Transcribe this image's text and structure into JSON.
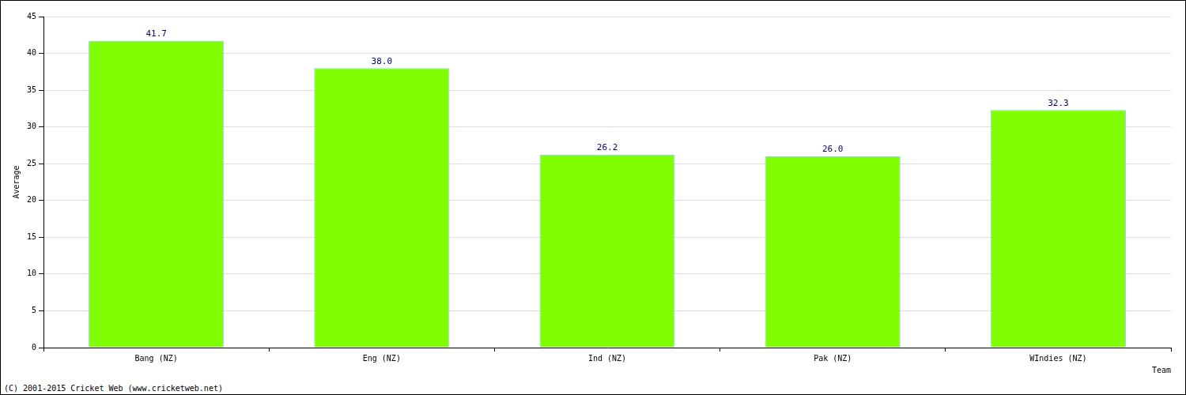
{
  "chart_data": {
    "type": "bar",
    "categories": [
      "Bang (NZ)",
      "Eng (NZ)",
      "Ind (NZ)",
      "Pak (NZ)",
      "WIndies (NZ)"
    ],
    "values": [
      41.7,
      38.0,
      26.2,
      26.0,
      32.3
    ],
    "value_labels": [
      "41.7",
      "38.0",
      "26.2",
      "26.0",
      "32.3"
    ],
    "color": "#80ff00",
    "x_label": "Team",
    "y_label": "Average",
    "annotations": [
      "(C) 2001-2015 Cricket Web (www.cricketweb.net)"
    ],
    "ylim": [
      0,
      45
    ],
    "yticks": [
      0,
      5,
      10,
      15,
      20,
      25,
      30,
      35,
      40,
      45
    ],
    "grid": true,
    "data_labels": true
  }
}
